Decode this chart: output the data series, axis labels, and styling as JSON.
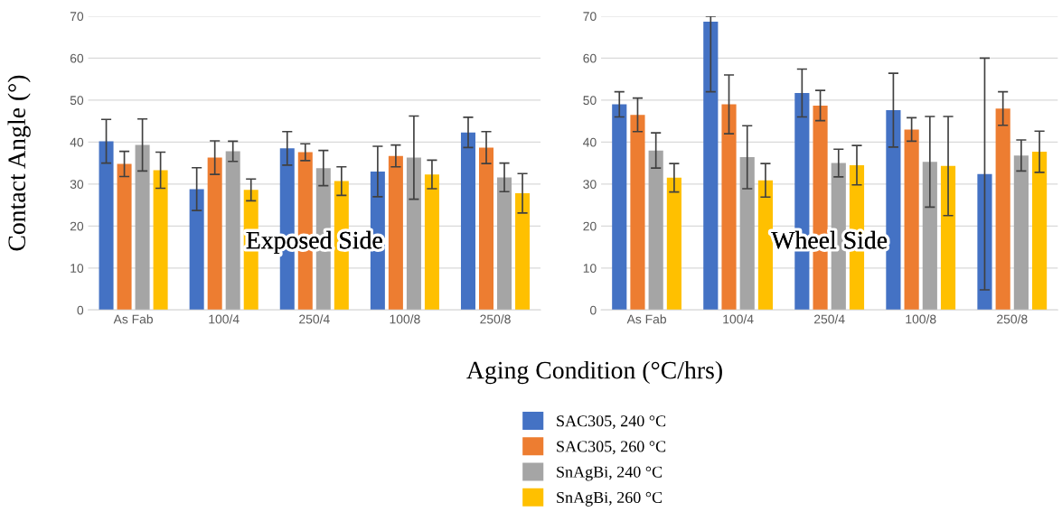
{
  "chart_data": [
    {
      "type": "bar",
      "title": "Exposed Side",
      "ylabel": "Contact Angle (°)",
      "xlabel": "Aging Condition (°C/hrs)",
      "categories": [
        "As Fab",
        "100/4",
        "250/4",
        "100/8",
        "250/8"
      ],
      "series": [
        {
          "name": "SAC305, 240 °C",
          "color": "#4472c4",
          "values": [
            40.2,
            28.8,
            38.5,
            33.0,
            42.3
          ],
          "errors": [
            5.2,
            5.1,
            4.0,
            6.0,
            3.6
          ]
        },
        {
          "name": "SAC305, 260 °C",
          "color": "#ed7d31",
          "values": [
            34.8,
            36.3,
            37.6,
            36.7,
            38.7
          ],
          "errors": [
            3.0,
            4.0,
            2.0,
            2.6,
            3.8
          ]
        },
        {
          "name": "SnAgBi, 240 °C",
          "color": "#a5a5a5",
          "values": [
            39.3,
            37.8,
            33.8,
            36.3,
            31.6
          ],
          "errors": [
            6.2,
            2.4,
            4.2,
            9.9,
            3.4
          ]
        },
        {
          "name": "SnAgBi, 260 °C",
          "color": "#ffc000",
          "values": [
            33.3,
            28.6,
            30.7,
            32.3,
            27.8
          ],
          "errors": [
            4.3,
            2.6,
            3.4,
            3.4,
            4.7
          ]
        }
      ],
      "ylim": [
        0,
        70
      ],
      "yticks": [
        0,
        10,
        20,
        30,
        40,
        50,
        60,
        70
      ],
      "grid": "y",
      "legend": "bottom"
    },
    {
      "type": "bar",
      "title": "Wheel Side",
      "categories": [
        "As Fab",
        "100/4",
        "250/4",
        "100/8",
        "250/8"
      ],
      "series": [
        {
          "color": "#4472c4",
          "values": [
            49.0,
            68.7,
            51.7,
            47.6,
            32.4
          ],
          "errors": [
            3.0,
            [
              52.0,
              70
            ],
            5.7,
            8.8,
            27.6
          ]
        },
        {
          "color": "#ed7d31",
          "values": [
            46.5,
            49.0,
            48.7,
            43.0,
            48.0
          ],
          "errors": [
            4.0,
            7.0,
            3.6,
            2.8,
            4.0
          ]
        },
        {
          "color": "#a5a5a5",
          "values": [
            38.0,
            36.4,
            35.0,
            35.3,
            36.8
          ],
          "errors": [
            4.2,
            7.5,
            3.3,
            10.8,
            3.7
          ]
        },
        {
          "color": "#ffc000",
          "values": [
            31.5,
            30.9,
            34.5,
            34.3,
            37.7
          ],
          "errors": [
            3.4,
            4.0,
            4.7,
            11.8,
            4.9
          ]
        }
      ],
      "ylim": [
        0,
        70
      ],
      "yticks": [
        0,
        10,
        20,
        30,
        40,
        50,
        60,
        70
      ],
      "grid": "y",
      "legend": false
    }
  ]
}
